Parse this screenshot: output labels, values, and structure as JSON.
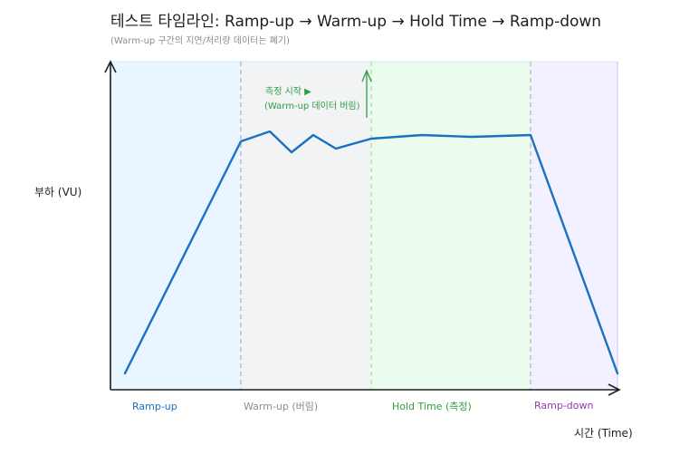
{
  "title": "테스트 타임라인: Ramp-up → Warm-up → Hold Time → Ramp-down",
  "subtitle": "(Warm-up 구간의 지연/처리량 데이터는 폐기)",
  "y_axis_label": "부하 (VU)",
  "x_axis_label": "시간 (Time)",
  "annotation": {
    "line1": "측정 시작 ▶",
    "line2": "(Warm-up 데이터 버림)",
    "color": "#2f9e44"
  },
  "phases": [
    {
      "label": "Ramp-up",
      "color": "#1971c2",
      "fill": "#e7f5ff"
    },
    {
      "label": "Warm-up (버림)",
      "color": "#868e96",
      "fill": "#f1f3f5"
    },
    {
      "label": "Hold Time (측정)",
      "color": "#2f9e44",
      "fill": "#ebfbee"
    },
    {
      "label": "Ramp-down",
      "color": "#9c36b5",
      "fill": "#f3f0ff"
    }
  ],
  "load_line": {
    "color": "#1971c2"
  }
}
